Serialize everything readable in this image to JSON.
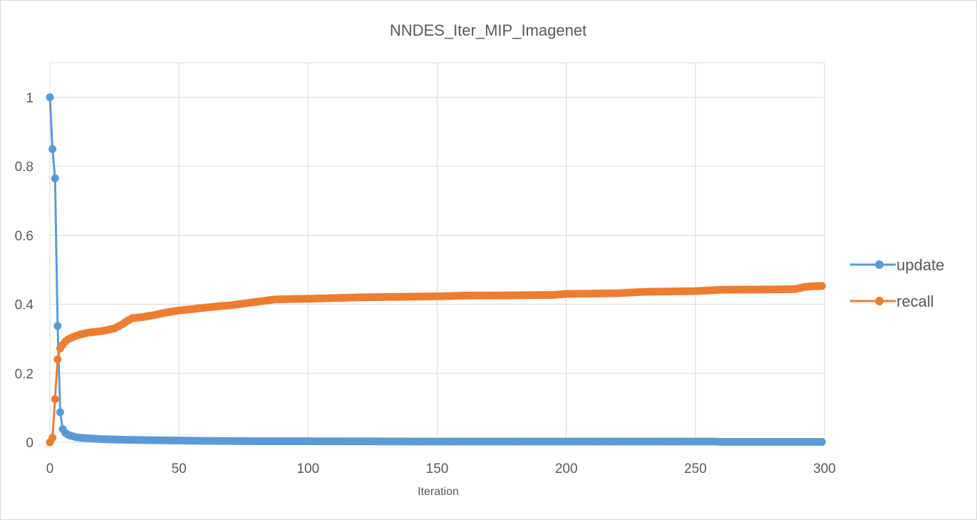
{
  "chart_data": {
    "type": "line",
    "title": "NNDES_Iter_MIP_Imagenet",
    "xlabel": "Iteration",
    "ylabel": "",
    "xlim": [
      0,
      300
    ],
    "ylim": [
      0,
      1.1
    ],
    "xticks": [
      "0",
      "50",
      "100",
      "150",
      "200",
      "250",
      "300"
    ],
    "yticks": [
      "0",
      "0.2",
      "0.4",
      "0.6",
      "0.8",
      "1"
    ],
    "grid": true,
    "legend_position": "right",
    "series": [
      {
        "name": "update",
        "color": "#5b9bd5",
        "points": [
          [
            0,
            1.0
          ],
          [
            1,
            0.85
          ],
          [
            2,
            0.765
          ],
          [
            3,
            0.337
          ],
          [
            4,
            0.087
          ],
          [
            5,
            0.038
          ],
          [
            6,
            0.027
          ],
          [
            7,
            0.022
          ],
          [
            8,
            0.019
          ],
          [
            9,
            0.017
          ],
          [
            10,
            0.015
          ],
          [
            12,
            0.013
          ],
          [
            14,
            0.012
          ],
          [
            16,
            0.011
          ],
          [
            18,
            0.01
          ],
          [
            20,
            0.009
          ],
          [
            25,
            0.008
          ],
          [
            30,
            0.007
          ],
          [
            40,
            0.006
          ],
          [
            50,
            0.005
          ],
          [
            60,
            0.004
          ],
          [
            80,
            0.003
          ],
          [
            100,
            0.003
          ],
          [
            150,
            0.002
          ],
          [
            200,
            0.002
          ],
          [
            250,
            0.002
          ],
          [
            258,
            0.002
          ],
          [
            260,
            0.001
          ],
          [
            280,
            0.001
          ],
          [
            299,
            0.001
          ]
        ]
      },
      {
        "name": "recall",
        "color": "#ed7d31",
        "points": [
          [
            0,
            0.0
          ],
          [
            1,
            0.013
          ],
          [
            2,
            0.125
          ],
          [
            3,
            0.24
          ],
          [
            4,
            0.272
          ],
          [
            5,
            0.283
          ],
          [
            6,
            0.292
          ],
          [
            7,
            0.298
          ],
          [
            8,
            0.302
          ],
          [
            10,
            0.308
          ],
          [
            12,
            0.313
          ],
          [
            15,
            0.318
          ],
          [
            20,
            0.322
          ],
          [
            25,
            0.33
          ],
          [
            28,
            0.342
          ],
          [
            30,
            0.352
          ],
          [
            32,
            0.36
          ],
          [
            35,
            0.362
          ],
          [
            40,
            0.368
          ],
          [
            45,
            0.376
          ],
          [
            50,
            0.382
          ],
          [
            55,
            0.386
          ],
          [
            60,
            0.39
          ],
          [
            65,
            0.394
          ],
          [
            70,
            0.397
          ],
          [
            75,
            0.402
          ],
          [
            80,
            0.407
          ],
          [
            85,
            0.412
          ],
          [
            87,
            0.414
          ],
          [
            100,
            0.416
          ],
          [
            110,
            0.418
          ],
          [
            120,
            0.42
          ],
          [
            130,
            0.421
          ],
          [
            140,
            0.422
          ],
          [
            150,
            0.423
          ],
          [
            155,
            0.424
          ],
          [
            160,
            0.425
          ],
          [
            180,
            0.426
          ],
          [
            195,
            0.427
          ],
          [
            200,
            0.43
          ],
          [
            220,
            0.432
          ],
          [
            225,
            0.434
          ],
          [
            230,
            0.436
          ],
          [
            240,
            0.437
          ],
          [
            250,
            0.438
          ],
          [
            255,
            0.44
          ],
          [
            260,
            0.442
          ],
          [
            280,
            0.443
          ],
          [
            289,
            0.444
          ],
          [
            292,
            0.45
          ],
          [
            295,
            0.452
          ],
          [
            299,
            0.453
          ]
        ]
      }
    ]
  }
}
